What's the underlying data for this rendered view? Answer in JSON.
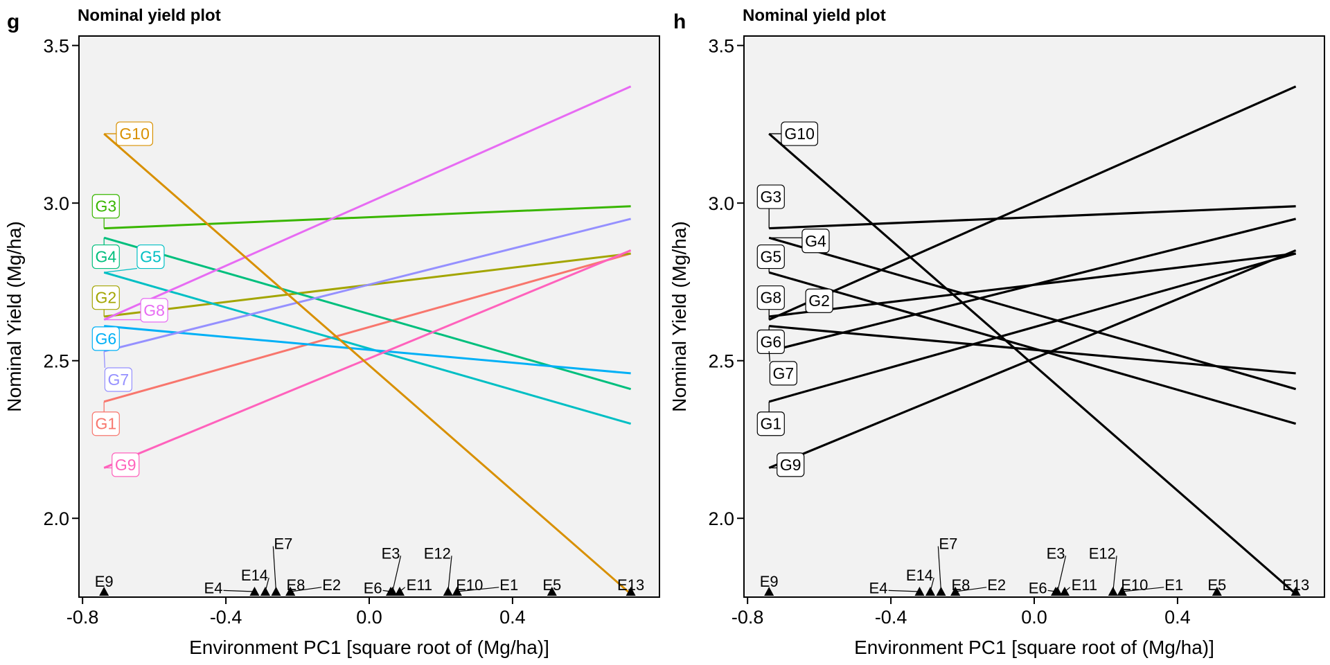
{
  "chart_data": [
    {
      "type": "line",
      "panel": "g",
      "title": "Nominal yield plot",
      "xlabel": "Environment PC1 [square root of  (Mg/ha)]",
      "ylabel": "Nominal Yield (Mg/ha)",
      "xlim": [
        -0.81,
        0.81
      ],
      "ylim": [
        1.75,
        3.53
      ],
      "xticks": [
        -0.8,
        -0.4,
        0.0,
        0.4
      ],
      "xtick_labels": [
        "-0.8",
        "-0.4",
        "0.0",
        "0.4"
      ],
      "yticks": [
        2.0,
        2.5,
        3.0,
        3.5
      ],
      "ytick_labels": [
        "2.0",
        "2.5",
        "3.0",
        "3.5"
      ],
      "grid": false,
      "colored": true,
      "series": [
        {
          "name": "G1",
          "color": "#F8766D",
          "x": [
            -0.74,
            0.73
          ],
          "y": [
            2.37,
            2.84
          ],
          "label": {
            "x": -0.735,
            "y": 2.3
          }
        },
        {
          "name": "G2",
          "color": "#A3A500",
          "x": [
            -0.74,
            0.73
          ],
          "y": [
            2.64,
            2.84
          ],
          "label": {
            "x": -0.735,
            "y": 2.7
          }
        },
        {
          "name": "G3",
          "color": "#39B600",
          "x": [
            -0.74,
            0.73
          ],
          "y": [
            2.92,
            2.99
          ],
          "label": {
            "x": -0.735,
            "y": 2.99
          }
        },
        {
          "name": "G4",
          "color": "#00BF7D",
          "x": [
            -0.74,
            0.73
          ],
          "y": [
            2.89,
            2.41
          ],
          "label": {
            "x": -0.735,
            "y": 2.83
          }
        },
        {
          "name": "G5",
          "color": "#00BFC4",
          "x": [
            -0.74,
            0.73
          ],
          "y": [
            2.78,
            2.3
          ],
          "label": {
            "x": -0.61,
            "y": 2.83
          }
        },
        {
          "name": "G6",
          "color": "#00B0F6",
          "x": [
            -0.74,
            0.73
          ],
          "y": [
            2.61,
            2.46
          ],
          "label": {
            "x": -0.735,
            "y": 2.57
          }
        },
        {
          "name": "G7",
          "color": "#9590FF",
          "x": [
            -0.74,
            0.73
          ],
          "y": [
            2.53,
            2.95
          ],
          "label": {
            "x": -0.7,
            "y": 2.44
          }
        },
        {
          "name": "G8",
          "color": "#E76BF3",
          "x": [
            -0.74,
            0.73
          ],
          "y": [
            2.63,
            3.37
          ],
          "label": {
            "x": -0.6,
            "y": 2.66
          }
        },
        {
          "name": "G9",
          "color": "#FF62BC",
          "x": [
            -0.74,
            0.73
          ],
          "y": [
            2.16,
            2.85
          ],
          "label": {
            "x": -0.68,
            "y": 2.17
          }
        },
        {
          "name": "G10",
          "color": "#D89000",
          "x": [
            -0.74,
            0.73
          ],
          "y": [
            3.22,
            1.76
          ],
          "label": {
            "x": -0.655,
            "y": 3.22
          }
        }
      ],
      "environments": [
        {
          "name": "E9",
          "x": -0.74,
          "label": {
            "x": -0.74,
            "y": 1.8
          }
        },
        {
          "name": "E4",
          "x": -0.32,
          "label": {
            "x": -0.435,
            "y": 1.78
          }
        },
        {
          "name": "E14",
          "x": -0.29,
          "label": {
            "x": -0.32,
            "y": 1.82
          }
        },
        {
          "name": "E7",
          "x": -0.26,
          "label": {
            "x": -0.24,
            "y": 1.92
          }
        },
        {
          "name": "E8",
          "x": -0.22,
          "label": {
            "x": -0.205,
            "y": 1.79
          }
        },
        {
          "name": "E2",
          "x": -0.22,
          "label": {
            "x": -0.105,
            "y": 1.79
          }
        },
        {
          "name": "E6",
          "x": 0.06,
          "label": {
            "x": 0.01,
            "y": 1.78
          }
        },
        {
          "name": "E3",
          "x": 0.065,
          "label": {
            "x": 0.06,
            "y": 1.89
          }
        },
        {
          "name": "E11",
          "x": 0.085,
          "label": {
            "x": 0.14,
            "y": 1.79
          }
        },
        {
          "name": "E12",
          "x": 0.22,
          "label": {
            "x": 0.19,
            "y": 1.89
          }
        },
        {
          "name": "E10",
          "x": 0.245,
          "label": {
            "x": 0.28,
            "y": 1.79
          }
        },
        {
          "name": "E1",
          "x": 0.245,
          "label": {
            "x": 0.39,
            "y": 1.79
          }
        },
        {
          "name": "E5",
          "x": 0.51,
          "label": {
            "x": 0.51,
            "y": 1.79
          }
        },
        {
          "name": "E13",
          "x": 0.73,
          "label": {
            "x": 0.73,
            "y": 1.79
          }
        }
      ]
    },
    {
      "type": "line",
      "panel": "h",
      "title": "Nominal yield plot",
      "xlabel": "Environment PC1 [square root of  (Mg/ha)]",
      "ylabel": "Nominal Yield (Mg/ha)",
      "xlim": [
        -0.81,
        0.81
      ],
      "ylim": [
        1.75,
        3.53
      ],
      "xticks": [
        -0.8,
        -0.4,
        0.0,
        0.4
      ],
      "xtick_labels": [
        "-0.8",
        "-0.4",
        "0.0",
        "0.4"
      ],
      "yticks": [
        2.0,
        2.5,
        3.0,
        3.5
      ],
      "ytick_labels": [
        "2.0",
        "2.5",
        "3.0",
        "3.5"
      ],
      "grid": false,
      "colored": false,
      "series": [
        {
          "name": "G1",
          "color": "#000000",
          "x": [
            -0.74,
            0.73
          ],
          "y": [
            2.37,
            2.84
          ],
          "label": {
            "x": -0.735,
            "y": 2.3
          }
        },
        {
          "name": "G2",
          "color": "#000000",
          "x": [
            -0.74,
            0.73
          ],
          "y": [
            2.64,
            2.84
          ],
          "label": {
            "x": -0.6,
            "y": 2.69
          }
        },
        {
          "name": "G3",
          "color": "#000000",
          "x": [
            -0.74,
            0.73
          ],
          "y": [
            2.92,
            2.99
          ],
          "label": {
            "x": -0.735,
            "y": 3.02
          }
        },
        {
          "name": "G4",
          "color": "#000000",
          "x": [
            -0.74,
            0.73
          ],
          "y": [
            2.89,
            2.41
          ],
          "label": {
            "x": -0.61,
            "y": 2.88
          }
        },
        {
          "name": "G5",
          "color": "#000000",
          "x": [
            -0.74,
            0.73
          ],
          "y": [
            2.78,
            2.3
          ],
          "label": {
            "x": -0.735,
            "y": 2.83
          }
        },
        {
          "name": "G6",
          "color": "#000000",
          "x": [
            -0.74,
            0.73
          ],
          "y": [
            2.61,
            2.46
          ],
          "label": {
            "x": -0.735,
            "y": 2.56
          }
        },
        {
          "name": "G7",
          "color": "#000000",
          "x": [
            -0.74,
            0.73
          ],
          "y": [
            2.53,
            2.95
          ],
          "label": {
            "x": -0.7,
            "y": 2.46
          }
        },
        {
          "name": "G8",
          "color": "#000000",
          "x": [
            -0.74,
            0.73
          ],
          "y": [
            2.63,
            3.37
          ],
          "label": {
            "x": -0.735,
            "y": 2.7
          }
        },
        {
          "name": "G9",
          "color": "#000000",
          "x": [
            -0.74,
            0.73
          ],
          "y": [
            2.16,
            2.85
          ],
          "label": {
            "x": -0.68,
            "y": 2.17
          }
        },
        {
          "name": "G10",
          "color": "#000000",
          "x": [
            -0.74,
            0.73
          ],
          "y": [
            3.22,
            1.76
          ],
          "label": {
            "x": -0.655,
            "y": 3.22
          }
        }
      ],
      "environments": [
        {
          "name": "E9",
          "x": -0.74,
          "label": {
            "x": -0.74,
            "y": 1.8
          }
        },
        {
          "name": "E4",
          "x": -0.32,
          "label": {
            "x": -0.435,
            "y": 1.78
          }
        },
        {
          "name": "E14",
          "x": -0.29,
          "label": {
            "x": -0.32,
            "y": 1.82
          }
        },
        {
          "name": "E7",
          "x": -0.26,
          "label": {
            "x": -0.24,
            "y": 1.92
          }
        },
        {
          "name": "E8",
          "x": -0.22,
          "label": {
            "x": -0.205,
            "y": 1.79
          }
        },
        {
          "name": "E2",
          "x": -0.22,
          "label": {
            "x": -0.105,
            "y": 1.79
          }
        },
        {
          "name": "E6",
          "x": 0.06,
          "label": {
            "x": 0.01,
            "y": 1.78
          }
        },
        {
          "name": "E3",
          "x": 0.065,
          "label": {
            "x": 0.06,
            "y": 1.89
          }
        },
        {
          "name": "E11",
          "x": 0.085,
          "label": {
            "x": 0.14,
            "y": 1.79
          }
        },
        {
          "name": "E12",
          "x": 0.22,
          "label": {
            "x": 0.19,
            "y": 1.89
          }
        },
        {
          "name": "E10",
          "x": 0.245,
          "label": {
            "x": 0.28,
            "y": 1.79
          }
        },
        {
          "name": "E1",
          "x": 0.245,
          "label": {
            "x": 0.39,
            "y": 1.79
          }
        },
        {
          "name": "E5",
          "x": 0.51,
          "label": {
            "x": 0.51,
            "y": 1.79
          }
        },
        {
          "name": "E13",
          "x": 0.73,
          "label": {
            "x": 0.73,
            "y": 1.79
          }
        }
      ]
    }
  ],
  "colors": {
    "panel_background": "#F2F2F2",
    "axis": "#000000",
    "label_fill": "#FFFFFF"
  }
}
